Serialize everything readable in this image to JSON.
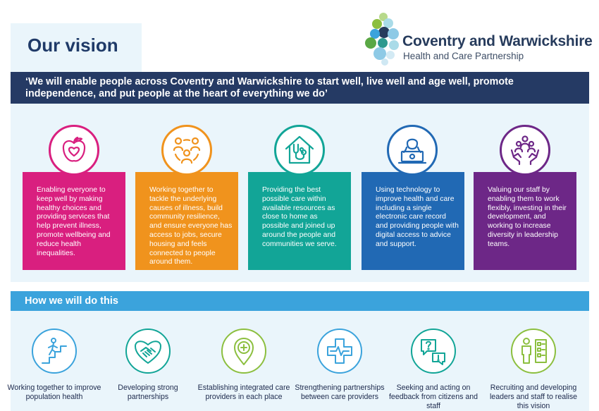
{
  "header": {
    "title": "Our vision",
    "logo_name": "Coventry and Warwickshire",
    "logo_sub": "Health and Care Partnership"
  },
  "quote": "‘We will enable people across Coventry and Warwickshire to start well, live well and age well, promote independence, and put people at the heart of everything we do’",
  "vision_cards": [
    {
      "icon": "apple-heart-icon",
      "color": "#d91f7f",
      "text": "Enabling everyone to keep well by making healthy choices and providing services that help prevent illness, promote wellbeing and reduce health inequalities."
    },
    {
      "icon": "people-circle-icon",
      "color": "#f0931d",
      "text": "Working together to tackle the underlying causes of illness, build community resilience, and ensure everyone has access to jobs, secure housing and feels connected to people around them."
    },
    {
      "icon": "house-stethoscope-icon",
      "color": "#12a597",
      "text": "Providing the best possible care within available resources as close to home as possible and joined up around the people and communities we serve."
    },
    {
      "icon": "laptop-user-icon",
      "color": "#2169b4",
      "text": "Using technology to improve health and care including a single electronic care record and providing people with digital access to advice and support."
    },
    {
      "icon": "team-hands-icon",
      "color": "#6d2787",
      "text": "Valuing our staff by enabling them to work flexibly, investing in their development, and working to increase diversity in leadership teams."
    }
  ],
  "how": {
    "title": "How we will do this",
    "items": [
      {
        "icon": "stairs-climb-icon",
        "color": "#3ba3dc",
        "label": "Working together to improve population health"
      },
      {
        "icon": "handshake-heart-icon",
        "color": "#12a597",
        "label": "Developing strong partnerships"
      },
      {
        "icon": "location-plus-icon",
        "color": "#8cbf3f",
        "label": "Establishing integrated care providers in each place"
      },
      {
        "icon": "medical-cross-icon",
        "color": "#3ba3dc",
        "label": "Strengthening partnerships between care providers"
      },
      {
        "icon": "speech-bubbles-icon",
        "color": "#12a597",
        "label": "Seeking and acting on feedback from citizens and staff"
      },
      {
        "icon": "person-checklist-icon",
        "color": "#8cbf3f",
        "label": "Recruiting and developing leaders and staff to realise this vision"
      }
    ]
  }
}
